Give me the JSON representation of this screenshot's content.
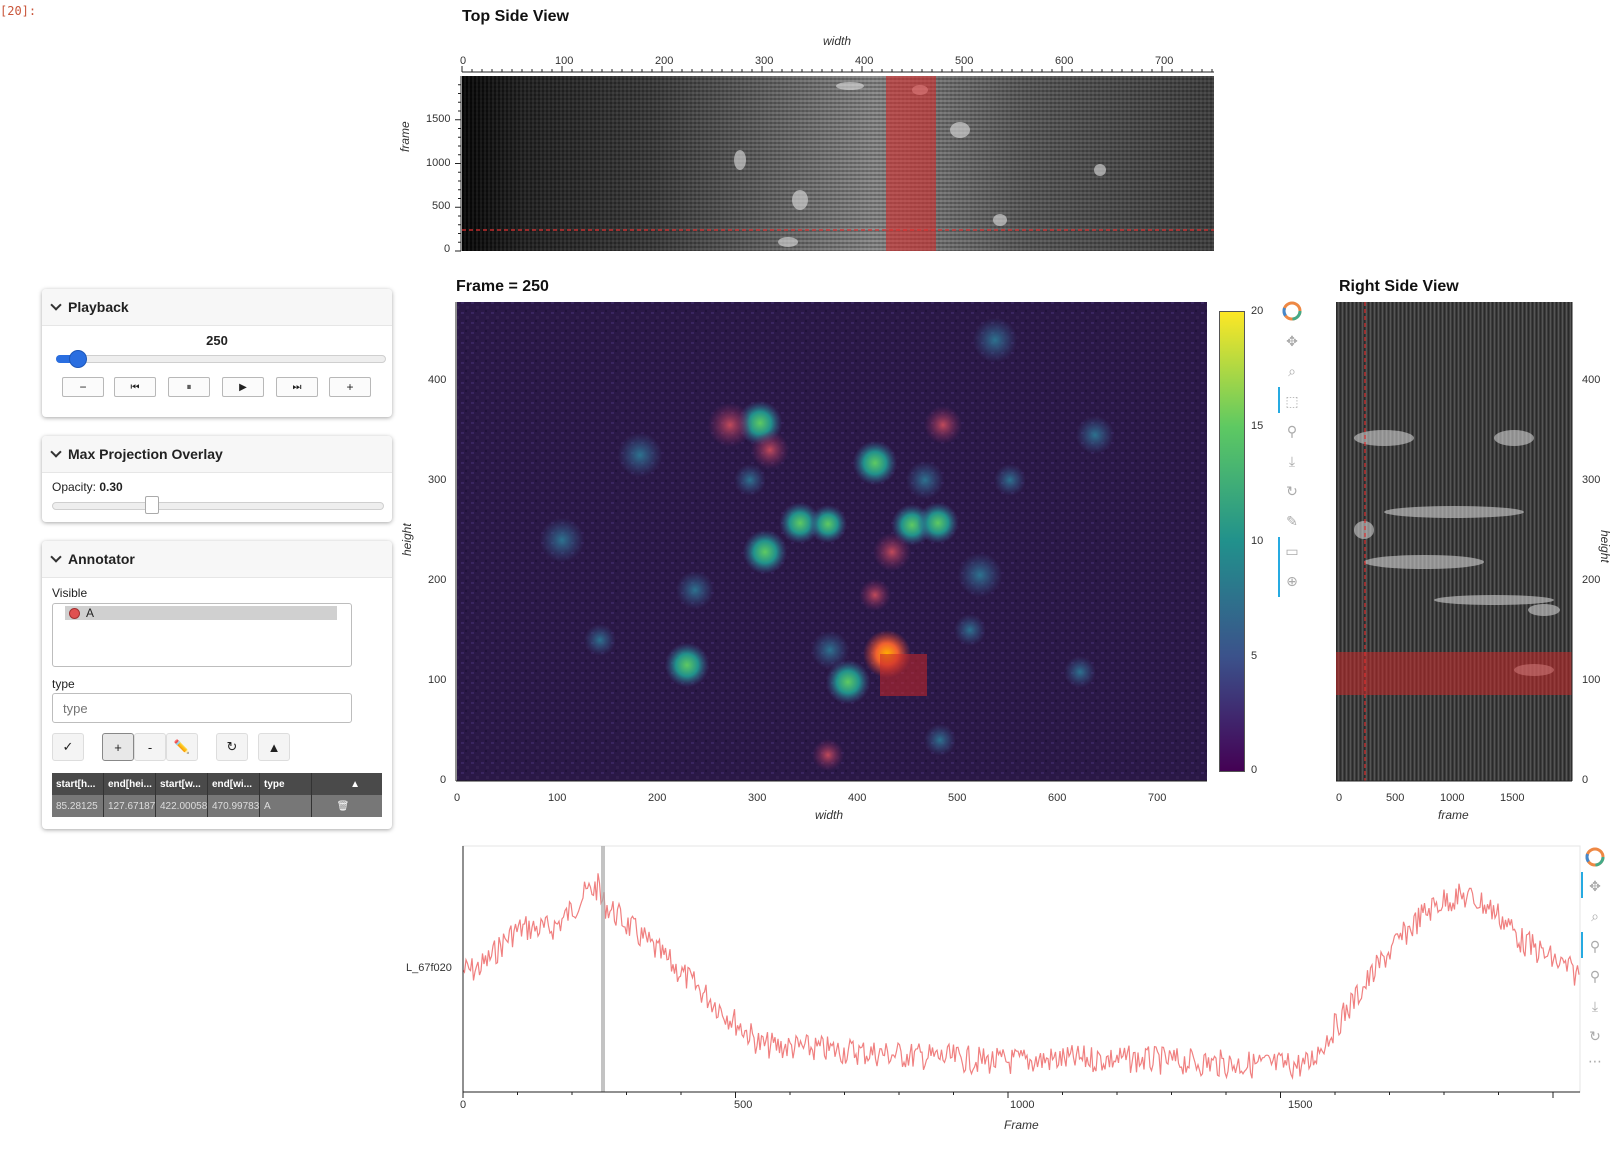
{
  "cell_label": "[20]:",
  "top_view": {
    "title": "Top Side View",
    "xlabel": "width",
    "ylabel": "frame",
    "xticks": [
      "0",
      "100",
      "200",
      "300",
      "400",
      "500",
      "600",
      "700"
    ],
    "yticks": [
      "0",
      "500",
      "1000",
      "1500"
    ]
  },
  "frame_view": {
    "title": "Frame = 250",
    "xlabel": "width",
    "ylabel": "height",
    "xticks": [
      "0",
      "100",
      "200",
      "300",
      "400",
      "500",
      "600",
      "700"
    ],
    "yticks": [
      "0",
      "100",
      "200",
      "300",
      "400"
    ],
    "colorbar_ticks": [
      "0",
      "5",
      "10",
      "15",
      "20"
    ]
  },
  "right_view": {
    "title": "Right Side View",
    "xlabel": "frame",
    "ylabel": "height",
    "xticks": [
      "0",
      "500",
      "1000",
      "1500"
    ],
    "yticks": [
      "0",
      "100",
      "200",
      "300",
      "400"
    ]
  },
  "trace": {
    "ylabel": "L_67f020",
    "xlabel": "Frame",
    "xticks": [
      "0",
      "500",
      "1000",
      "1500"
    ],
    "line_color": "#f08080"
  },
  "playback": {
    "header": "Playback",
    "value": "250",
    "buttons": [
      "−",
      "⏮",
      "⏸",
      "▶",
      "⏭",
      "+"
    ],
    "slider_fraction": 0.0625
  },
  "overlay": {
    "header": "Max Projection Overlay",
    "opacity_label": "Opacity:",
    "opacity_value": "0.30",
    "slider_fraction": 0.3
  },
  "annotator": {
    "header": "Annotator",
    "visible_label": "Visible",
    "visible_items": [
      "A"
    ],
    "type_label": "type",
    "type_placeholder": "type",
    "tools": [
      "✓",
      "+",
      "-",
      "✏️",
      "↻",
      "▲"
    ],
    "table": {
      "headers": [
        "start[h...",
        "end[hei...",
        "start[w...",
        "end[wi...",
        "type"
      ],
      "rows": [
        [
          "85.28125",
          "127.671875",
          "422.00058",
          "470.99783",
          "A"
        ]
      ]
    }
  },
  "toolbar": {
    "icons": [
      "bokeh-logo-icon",
      "pan-icon",
      "box-zoom-icon",
      "box-select-icon",
      "wheel-zoom-icon",
      "save-icon",
      "reset-icon",
      "ruler-icon",
      "hover-icon",
      "crosshair-icon"
    ]
  },
  "trace_toolbar": {
    "icons": [
      "bokeh-logo-icon",
      "pan-icon",
      "box-zoom-icon",
      "wheel-zoom-icon",
      "wheel-zoom-y-icon",
      "save-icon",
      "reset-icon",
      "more-icon"
    ]
  }
}
